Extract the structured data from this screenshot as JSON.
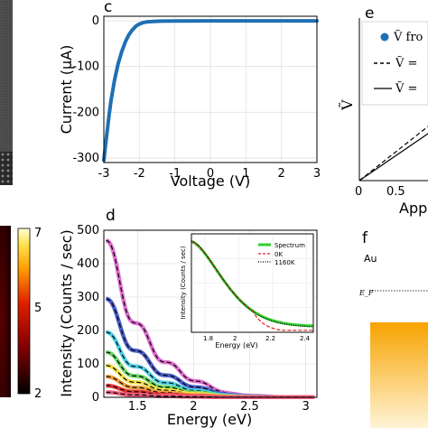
{
  "figure": {
    "letters": {
      "c": "c",
      "d": "d",
      "e": "e",
      "f": "f"
    },
    "colorbar_ticks": [
      "7",
      "5",
      "2"
    ],
    "panel_f_label": "Au",
    "panel_f_level": "E_F",
    "panel_e_legend": [
      "Ṽ fro",
      "Ṽ = ",
      "Ṽ = "
    ],
    "panel_e_xlabel": "App",
    "panel_e_ylabel": "Ṽ",
    "panel_e_xticks": [
      "0",
      "0.5"
    ]
  },
  "chart_data": [
    {
      "id": "c",
      "type": "line",
      "xlabel": "Voltage (V)",
      "ylabel": "Current (μA)",
      "xlim": [
        -3,
        3
      ],
      "ylim": [
        -310,
        10
      ],
      "xticks": [
        "-3",
        "-2",
        "-1",
        "0",
        "1",
        "2",
        "3"
      ],
      "yticks": [
        "0",
        "-100",
        "-200",
        "-300"
      ],
      "grid": true,
      "series": [
        {
          "color": "#1f6fb4",
          "x": [
            -3.0,
            -2.95,
            -2.9,
            -2.85,
            -2.8,
            -2.7,
            -2.6,
            -2.5,
            -2.4,
            -2.3,
            -2.2,
            -2.1,
            -2.0,
            -1.9,
            -1.8,
            -1.6,
            -1.4,
            -1.0,
            0.0,
            1.0,
            2.0,
            3.0
          ],
          "y": [
            -305,
            -270,
            -238,
            -205,
            -175,
            -130,
            -95,
            -68,
            -47,
            -31,
            -20,
            -12,
            -7,
            -4,
            -2.5,
            -1.2,
            -0.6,
            -0.3,
            0,
            0,
            0,
            0
          ]
        }
      ]
    },
    {
      "id": "d",
      "type": "line",
      "xlabel": "Energy (eV)",
      "ylabel": "Intensity (Counts / sec)",
      "xlim": [
        1.2,
        3.1
      ],
      "ylim": [
        0,
        500
      ],
      "xticks": [
        "1.5",
        "2",
        "2.5",
        "3"
      ],
      "yticks": [
        "0",
        "100",
        "200",
        "300",
        "400",
        "500"
      ],
      "grid": true,
      "series": [
        {
          "color": "#e070d0",
          "peak": 470
        },
        {
          "color": "#4a5fc8",
          "peak": 295
        },
        {
          "color": "#4fd0e8",
          "peak": 195
        },
        {
          "color": "#6fd86a",
          "peak": 135
        },
        {
          "color": "#f2e34a",
          "peak": 95
        },
        {
          "color": "#f0a040",
          "peak": 62
        },
        {
          "color": "#e83a3a",
          "peak": 35
        },
        {
          "color": "#f06080",
          "peak": 15
        }
      ],
      "inset": {
        "xlabel": "Energy (eV)",
        "ylabel": "Intensity (Counts / sec)",
        "xticks": [
          "1.8",
          "2",
          "2.2",
          "2.4"
        ],
        "legend": [
          "Spectrum",
          "0K",
          "1160K"
        ],
        "legend_colors": [
          "#33cc33",
          "#dd2222",
          "#000000"
        ]
      }
    }
  ]
}
